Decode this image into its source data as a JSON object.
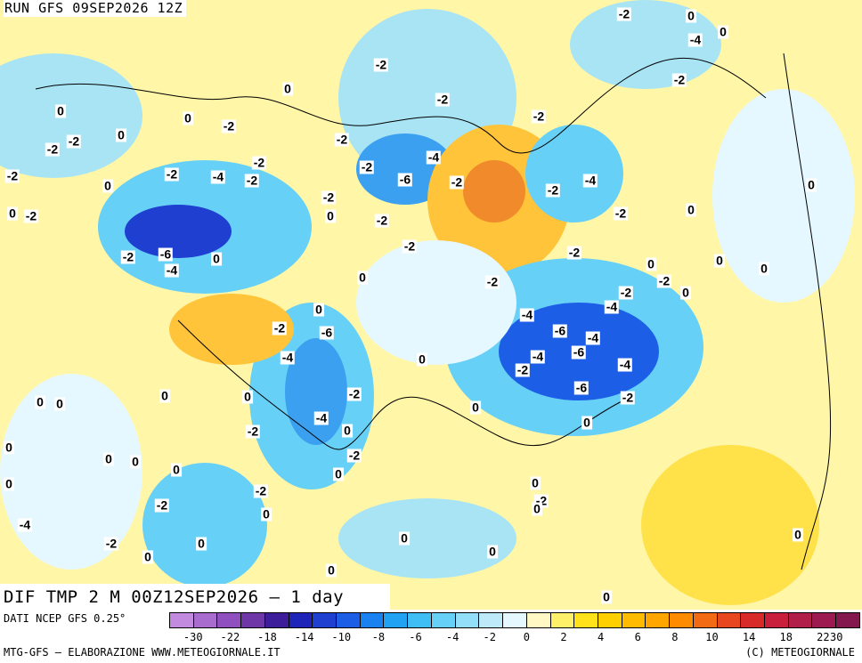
{
  "header": {
    "run_title": "RUN GFS 09SEP2026 12Z"
  },
  "map": {
    "labels": [
      "-2",
      "0",
      "-4",
      "0",
      "-2",
      "-2",
      "-2",
      "0",
      "-2",
      "-2",
      "0",
      "0",
      "-2",
      "0",
      "-2",
      "-2",
      "-2",
      "-2",
      "-2",
      "-2",
      "-6",
      "-4",
      "-2",
      "-4",
      "0",
      "-2",
      "-4",
      "-2",
      "0",
      "-2",
      "0",
      "-2",
      "-2",
      "-2",
      "0",
      "0",
      "-2",
      "-6",
      "-4",
      "0",
      "-2",
      "0",
      "-2",
      "-4",
      "-6",
      "-4",
      "-2",
      "0",
      "0",
      "0",
      "-2",
      "-4",
      "-2",
      "0",
      "-6",
      "-4",
      "-2",
      "-4",
      "-4",
      "-6",
      "-2",
      "-6",
      "-4",
      "-2",
      "0",
      "0",
      "-2",
      "0",
      "0",
      "0",
      "0",
      "0",
      "0",
      "-2",
      "-2",
      "0",
      "0",
      "-2",
      "0",
      "0",
      "0",
      "0",
      "-2",
      "0",
      "0",
      "-2",
      "0",
      "0",
      "-4",
      "0",
      "0",
      "0",
      "-2",
      "0",
      "0",
      "0",
      "0",
      "0"
    ],
    "colors": {
      "cold_strong": "#1f3fd0",
      "cold": "#3aa0ef",
      "cool": "#a8e4f4",
      "neutral": "#e6f8ff",
      "warm": "#ffe14a",
      "warmer": "#ffc43a",
      "hot": "#f08a2a"
    }
  },
  "footer": {
    "title": "DIF TMP 2 M 00Z12SEP2026 – 1 day",
    "source": "DATI NCEP GFS 0.25°",
    "credit_left": "MTG-GFS – ELABORAZIONE WWW.METEOGIORNALE.IT",
    "credit_right": "(C) METEOGIORNALE"
  },
  "colorbar": {
    "colors": [
      "#c38be0",
      "#a86ccf",
      "#8f4fbf",
      "#6f36a8",
      "#3d1d9a",
      "#1f24b8",
      "#1f3fd0",
      "#1c5ee6",
      "#1a82f0",
      "#22a2f3",
      "#3fbdf5",
      "#67d0f7",
      "#93def8",
      "#bde9f9",
      "#e6f8ff",
      "#fff8c4",
      "#fff06a",
      "#ffe21a",
      "#ffd000",
      "#ffbb00",
      "#ffa600",
      "#ff8c00",
      "#f26b14",
      "#e8461e",
      "#d92a2a",
      "#c91f3c",
      "#b21e4a",
      "#9c1a50",
      "#85174f"
    ],
    "ticks": [
      "-30",
      "-22",
      "-18",
      "-14",
      "-10",
      "-8",
      "-6",
      "-4",
      "-2",
      "0",
      "2",
      "4",
      "6",
      "8",
      "10",
      "14",
      "18",
      "22",
      "30"
    ]
  }
}
